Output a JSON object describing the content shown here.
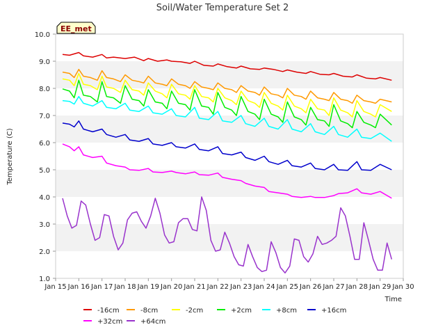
{
  "chart_data": {
    "type": "line",
    "title": "Soil/Water Temperature Set 2",
    "xlabel": "Time",
    "ylabel": "Temperature (C)",
    "badge": "EE_met",
    "ylim": [
      1.0,
      10.0
    ],
    "yticks": [
      "1.0",
      "2.0",
      "3.0",
      "4.0",
      "5.0",
      "6.0",
      "7.0",
      "8.0",
      "9.0",
      "10.0"
    ],
    "xlim": [
      15,
      30
    ],
    "xticks": [
      "Jan 15",
      "Jan 16",
      "Jan 17",
      "Jan 18",
      "Jan 19",
      "Jan 20",
      "Jan 21",
      "Jan 22",
      "Jan 23",
      "Jan 24",
      "Jan 25",
      "Jan 26",
      "Jan 27",
      "Jan 28",
      "Jan 29",
      "Jan 30"
    ],
    "grid": "horizontal bands",
    "legend_position": "bottom",
    "series": [
      {
        "name": "-16cm",
        "color": "#dd0000",
        "x": [
          15.3,
          15.6,
          16.0,
          16.2,
          16.6,
          17.0,
          17.2,
          17.5,
          18.0,
          18.4,
          18.8,
          19.0,
          19.4,
          19.8,
          20.0,
          20.4,
          20.8,
          21.0,
          21.4,
          21.8,
          22.0,
          22.4,
          22.8,
          23.0,
          23.4,
          23.8,
          24.0,
          24.4,
          24.8,
          25.0,
          25.4,
          25.8,
          26.0,
          26.4,
          26.8,
          27.0,
          27.4,
          27.8,
          28.0,
          28.4,
          28.8,
          29.0,
          29.5
        ],
        "values": [
          9.25,
          9.22,
          9.32,
          9.2,
          9.15,
          9.25,
          9.12,
          9.15,
          9.1,
          9.15,
          9.02,
          9.1,
          9.0,
          9.05,
          9.0,
          8.98,
          8.92,
          9.0,
          8.85,
          8.82,
          8.9,
          8.8,
          8.75,
          8.82,
          8.72,
          8.7,
          8.75,
          8.7,
          8.62,
          8.68,
          8.6,
          8.55,
          8.62,
          8.52,
          8.5,
          8.55,
          8.45,
          8.42,
          8.5,
          8.38,
          8.35,
          8.4,
          8.3
        ]
      },
      {
        "name": "-8cm",
        "color": "#ff9900",
        "x": [
          15.3,
          15.6,
          15.8,
          16.0,
          16.2,
          16.5,
          16.8,
          17.0,
          17.2,
          17.5,
          17.8,
          18.0,
          18.3,
          18.6,
          18.8,
          19.0,
          19.3,
          19.6,
          19.8,
          20.0,
          20.3,
          20.6,
          20.8,
          21.0,
          21.3,
          21.6,
          21.8,
          22.0,
          22.3,
          22.6,
          22.8,
          23.0,
          23.3,
          23.6,
          23.8,
          24.0,
          24.3,
          24.6,
          24.8,
          25.0,
          25.3,
          25.6,
          25.8,
          26.0,
          26.3,
          26.6,
          26.8,
          27.0,
          27.3,
          27.6,
          27.8,
          28.0,
          28.3,
          28.6,
          28.8,
          29.0,
          29.5
        ],
        "values": [
          8.6,
          8.55,
          8.4,
          8.7,
          8.45,
          8.4,
          8.3,
          8.65,
          8.4,
          8.35,
          8.25,
          8.5,
          8.3,
          8.25,
          8.2,
          8.45,
          8.2,
          8.15,
          8.1,
          8.35,
          8.15,
          8.1,
          8.0,
          8.25,
          8.05,
          8.0,
          7.95,
          8.2,
          8.0,
          7.95,
          7.85,
          8.1,
          7.9,
          7.85,
          7.75,
          8.05,
          7.8,
          7.75,
          7.65,
          8.0,
          7.75,
          7.7,
          7.6,
          7.9,
          7.65,
          7.6,
          7.55,
          7.85,
          7.6,
          7.55,
          7.45,
          7.75,
          7.55,
          7.5,
          7.45,
          7.6,
          7.5
        ]
      },
      {
        "name": "-2cm",
        "color": "#ffff00",
        "x": [
          15.3,
          15.6,
          15.8,
          16.0,
          16.2,
          16.5,
          16.8,
          17.0,
          17.2,
          17.5,
          17.8,
          18.0,
          18.3,
          18.6,
          18.8,
          19.0,
          19.3,
          19.6,
          19.8,
          20.0,
          20.3,
          20.6,
          20.8,
          21.0,
          21.3,
          21.6,
          21.8,
          22.0,
          22.3,
          22.6,
          22.8,
          23.0,
          23.3,
          23.6,
          23.8,
          24.0,
          24.3,
          24.6,
          24.8,
          25.0,
          25.3,
          25.6,
          25.8,
          26.0,
          26.3,
          26.6,
          26.8,
          27.0,
          27.3,
          27.6,
          27.8,
          28.0,
          28.3,
          28.6,
          28.8,
          29.0,
          29.5
        ],
        "values": [
          8.35,
          8.3,
          8.1,
          8.55,
          8.15,
          8.1,
          7.95,
          8.45,
          8.05,
          8.0,
          7.85,
          8.3,
          7.95,
          7.9,
          7.75,
          8.2,
          7.9,
          7.8,
          7.65,
          8.15,
          7.8,
          7.75,
          7.6,
          8.1,
          7.7,
          7.65,
          7.5,
          8.0,
          7.65,
          7.55,
          7.4,
          7.9,
          7.55,
          7.45,
          7.3,
          7.85,
          7.45,
          7.35,
          7.2,
          7.75,
          7.35,
          7.25,
          7.1,
          7.6,
          7.25,
          7.2,
          7.0,
          7.65,
          7.2,
          7.1,
          6.95,
          7.55,
          7.15,
          7.05,
          6.95,
          7.4,
          7.15
        ]
      },
      {
        "name": "+2cm",
        "color": "#00ee00",
        "x": [
          15.3,
          15.6,
          15.8,
          16.0,
          16.2,
          16.5,
          16.8,
          17.0,
          17.2,
          17.5,
          17.8,
          18.0,
          18.3,
          18.6,
          18.8,
          19.0,
          19.3,
          19.6,
          19.8,
          20.0,
          20.3,
          20.6,
          20.8,
          21.0,
          21.3,
          21.6,
          21.8,
          22.0,
          22.3,
          22.6,
          22.8,
          23.0,
          23.3,
          23.6,
          23.8,
          24.0,
          24.3,
          24.6,
          24.8,
          25.0,
          25.3,
          25.6,
          25.8,
          26.0,
          26.3,
          26.6,
          26.8,
          27.0,
          27.3,
          27.6,
          27.8,
          28.0,
          28.3,
          28.6,
          28.8,
          29.0,
          29.5
        ],
        "values": [
          7.98,
          7.9,
          7.65,
          8.3,
          7.75,
          7.7,
          7.5,
          8.25,
          7.7,
          7.65,
          7.45,
          8.1,
          7.6,
          7.55,
          7.35,
          7.95,
          7.5,
          7.45,
          7.25,
          7.9,
          7.45,
          7.4,
          7.2,
          7.95,
          7.35,
          7.3,
          7.05,
          7.85,
          7.3,
          7.2,
          7.0,
          7.7,
          7.15,
          7.05,
          6.85,
          7.6,
          7.05,
          6.95,
          6.75,
          7.5,
          6.95,
          6.85,
          6.65,
          7.3,
          6.85,
          6.8,
          6.6,
          7.4,
          6.8,
          6.7,
          6.55,
          7.15,
          6.75,
          6.65,
          6.55,
          7.05,
          6.65
        ]
      },
      {
        "name": "+8cm",
        "color": "#00ffff",
        "x": [
          15.3,
          15.6,
          15.8,
          16.0,
          16.2,
          16.6,
          17.0,
          17.2,
          17.6,
          18.0,
          18.2,
          18.6,
          19.0,
          19.2,
          19.6,
          20.0,
          20.2,
          20.6,
          21.0,
          21.2,
          21.6,
          22.0,
          22.2,
          22.6,
          23.0,
          23.2,
          23.6,
          24.0,
          24.2,
          24.6,
          25.0,
          25.2,
          25.6,
          26.0,
          26.2,
          26.6,
          27.0,
          27.2,
          27.6,
          28.0,
          28.2,
          28.6,
          29.0,
          29.5
        ],
        "values": [
          7.55,
          7.52,
          7.42,
          7.7,
          7.45,
          7.35,
          7.55,
          7.3,
          7.25,
          7.45,
          7.2,
          7.15,
          7.35,
          7.1,
          7.05,
          7.25,
          7.0,
          6.95,
          7.3,
          6.9,
          6.85,
          7.15,
          6.8,
          6.75,
          7.0,
          6.7,
          6.6,
          6.9,
          6.6,
          6.5,
          6.85,
          6.5,
          6.4,
          6.7,
          6.4,
          6.3,
          6.6,
          6.3,
          6.2,
          6.5,
          6.2,
          6.15,
          6.35,
          6.05
        ]
      },
      {
        "name": "+16cm",
        "color": "#0000cc",
        "x": [
          15.3,
          15.6,
          15.8,
          16.0,
          16.2,
          16.6,
          17.0,
          17.2,
          17.6,
          18.0,
          18.2,
          18.6,
          19.0,
          19.2,
          19.6,
          20.0,
          20.2,
          20.6,
          21.0,
          21.2,
          21.6,
          22.0,
          22.2,
          22.6,
          23.0,
          23.2,
          23.6,
          24.0,
          24.2,
          24.6,
          25.0,
          25.2,
          25.6,
          26.0,
          26.2,
          26.6,
          27.0,
          27.2,
          27.6,
          28.0,
          28.2,
          28.6,
          29.0,
          29.5
        ],
        "values": [
          6.72,
          6.68,
          6.58,
          6.8,
          6.5,
          6.4,
          6.5,
          6.3,
          6.2,
          6.3,
          6.1,
          6.05,
          6.15,
          5.95,
          5.9,
          6.0,
          5.85,
          5.8,
          5.95,
          5.75,
          5.7,
          5.85,
          5.6,
          5.55,
          5.65,
          5.45,
          5.35,
          5.5,
          5.3,
          5.2,
          5.35,
          5.15,
          5.1,
          5.25,
          5.05,
          5.0,
          5.2,
          5.0,
          4.98,
          5.3,
          5.0,
          4.98,
          5.2,
          5.0
        ]
      },
      {
        "name": "+32cm",
        "color": "#ff00ff",
        "x": [
          15.3,
          15.6,
          15.8,
          16.0,
          16.2,
          16.6,
          17.0,
          17.2,
          17.6,
          18.0,
          18.2,
          18.6,
          19.0,
          19.2,
          19.6,
          20.0,
          20.2,
          20.6,
          21.0,
          21.2,
          21.6,
          22.0,
          22.2,
          22.6,
          23.0,
          23.2,
          23.6,
          24.0,
          24.2,
          24.6,
          25.0,
          25.2,
          25.6,
          26.0,
          26.2,
          26.6,
          27.0,
          27.2,
          27.6,
          28.0,
          28.2,
          28.6,
          29.0,
          29.5
        ],
        "values": [
          5.95,
          5.85,
          5.7,
          5.85,
          5.55,
          5.45,
          5.5,
          5.25,
          5.15,
          5.1,
          5.0,
          4.98,
          5.05,
          4.92,
          4.9,
          4.95,
          4.9,
          4.85,
          4.92,
          4.82,
          4.8,
          4.88,
          4.72,
          4.65,
          4.6,
          4.5,
          4.4,
          4.35,
          4.2,
          4.15,
          4.1,
          4.02,
          3.98,
          4.02,
          3.98,
          3.98,
          4.05,
          4.12,
          4.15,
          4.3,
          4.15,
          4.1,
          4.2,
          3.95
        ]
      },
      {
        "name": "+64cm",
        "color": "#9933cc",
        "x": [
          15.3,
          15.5,
          15.7,
          15.9,
          16.1,
          16.3,
          16.5,
          16.7,
          16.9,
          17.1,
          17.3,
          17.5,
          17.7,
          17.9,
          18.1,
          18.3,
          18.5,
          18.7,
          18.9,
          19.1,
          19.3,
          19.5,
          19.7,
          19.9,
          20.1,
          20.3,
          20.5,
          20.7,
          20.9,
          21.1,
          21.3,
          21.5,
          21.7,
          21.9,
          22.1,
          22.3,
          22.5,
          22.7,
          22.9,
          23.1,
          23.3,
          23.5,
          23.7,
          23.9,
          24.1,
          24.3,
          24.5,
          24.7,
          24.9,
          25.1,
          25.3,
          25.5,
          25.7,
          25.9,
          26.1,
          26.3,
          26.5,
          26.7,
          26.9,
          27.1,
          27.3,
          27.5,
          27.7,
          27.9,
          28.1,
          28.3,
          28.5,
          28.7,
          28.9,
          29.1,
          29.3,
          29.5
        ],
        "values": [
          3.95,
          3.3,
          2.85,
          2.95,
          3.85,
          3.7,
          3.0,
          2.4,
          2.5,
          3.35,
          3.3,
          2.55,
          2.05,
          2.3,
          3.15,
          3.4,
          3.45,
          3.1,
          2.85,
          3.3,
          3.95,
          3.4,
          2.6,
          2.3,
          2.35,
          3.05,
          3.2,
          3.2,
          2.8,
          2.75,
          4.0,
          3.5,
          2.4,
          2.0,
          2.05,
          2.7,
          2.3,
          1.8,
          1.5,
          1.45,
          2.25,
          1.8,
          1.4,
          1.25,
          1.3,
          2.35,
          1.95,
          1.4,
          1.2,
          1.45,
          2.45,
          2.4,
          1.8,
          1.6,
          1.9,
          2.55,
          2.25,
          2.3,
          2.4,
          2.55,
          3.6,
          3.3,
          2.55,
          1.7,
          1.7,
          3.05,
          2.4,
          1.7,
          1.3,
          1.3,
          2.3,
          1.7
        ]
      }
    ]
  }
}
